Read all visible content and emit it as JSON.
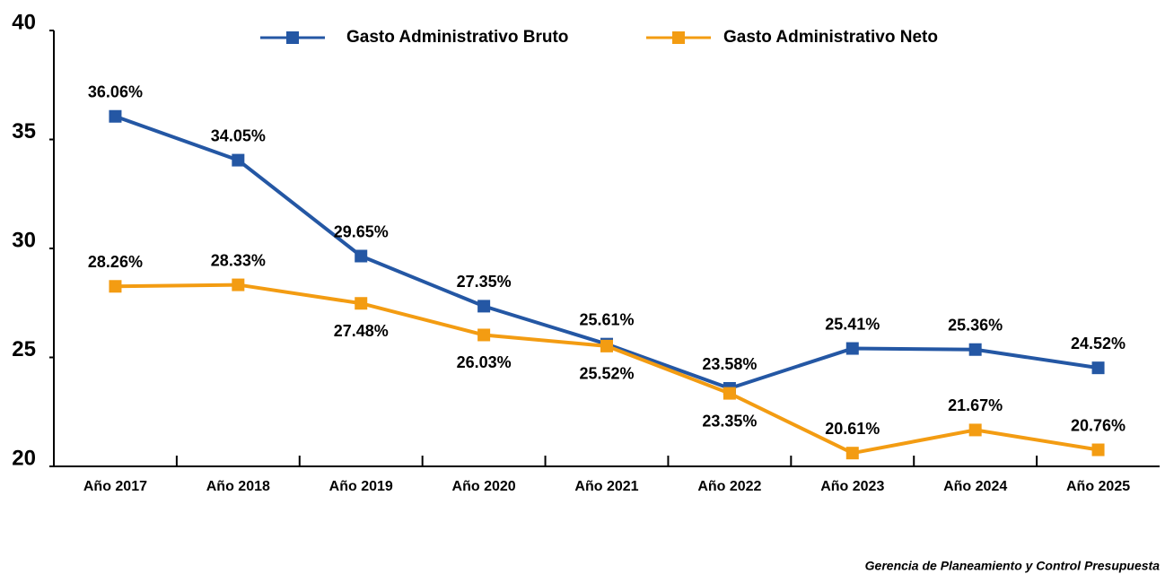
{
  "chart_data": {
    "type": "line",
    "categories": [
      "Año 2017",
      "Año 2018",
      "Año 2019",
      "Año 2020",
      "Año 2021",
      "Año 2022",
      "Año 2023",
      "Año 2024",
      "Año 2025"
    ],
    "series": [
      {
        "name": "Gasto Administrativo Bruto",
        "color": "#2457a4",
        "values": [
          36.06,
          34.05,
          29.65,
          27.35,
          25.61,
          23.58,
          25.41,
          25.36,
          24.52
        ],
        "value_labels": [
          "36.06%",
          "34.05%",
          "29.65%",
          "27.35%",
          "25.61%",
          "23.58%",
          "25.41%",
          "25.36%",
          "24.52%"
        ]
      },
      {
        "name": "Gasto Administrativo Neto",
        "color": "#f39c12",
        "values": [
          28.26,
          28.33,
          27.48,
          26.03,
          25.52,
          23.35,
          20.61,
          21.67,
          20.76
        ],
        "value_labels": [
          "28.26%",
          "28.33%",
          "27.48%",
          "26.03%",
          "25.52%",
          "23.35%",
          "20.61%",
          "21.67%",
          "20.76%"
        ]
      }
    ],
    "ylim": [
      20,
      40
    ],
    "yticks": [
      20,
      25,
      30,
      35,
      40
    ],
    "legend": "top",
    "source": "Gerencia de Planeamiento y Control Presupuesta"
  }
}
